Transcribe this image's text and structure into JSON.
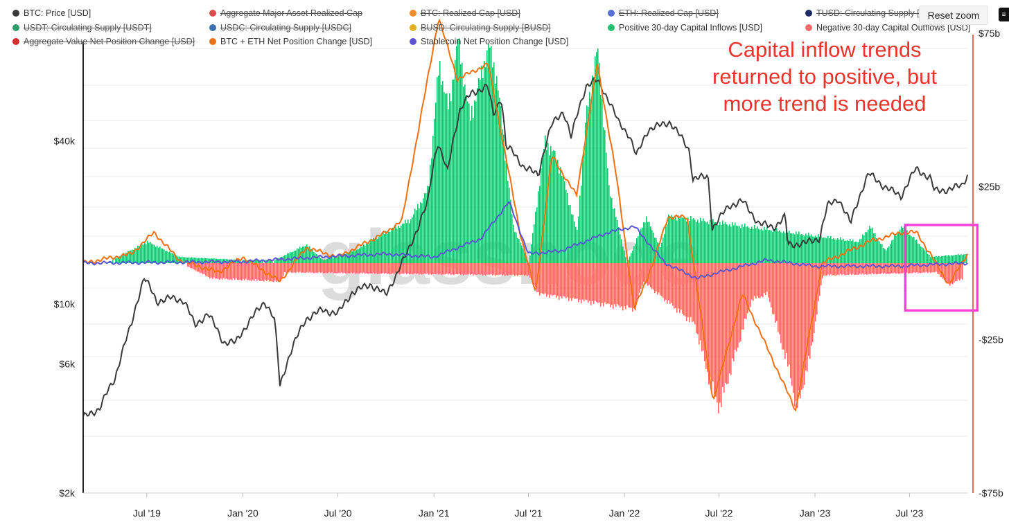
{
  "reset_zoom_label": "Reset zoom",
  "annotation": "Capital inflow trends returned to positive, but more trend is needed",
  "watermark": "glassnode",
  "legend": [
    {
      "label": "BTC: Price [USD]",
      "color": "#3a3a3a",
      "active": true
    },
    {
      "label": "Aggregate Major Asset Realized Cap",
      "color": "#e04a4a",
      "active": false
    },
    {
      "label": "BTC: Realized Cap [USD]",
      "color": "#f08b2d",
      "active": false
    },
    {
      "label": "ETH: Realized Cap [USD]",
      "color": "#5a6fd8",
      "active": false
    },
    {
      "label": "TUSD: Circulating Supply [",
      "color": "#1f2a6b",
      "active": false
    },
    {
      "label": "USDT: Circulating Supply [USDT]",
      "color": "#2a9d68",
      "active": false
    },
    {
      "label": "USDC: Circulating Supply [USDC]",
      "color": "#3a6fb0",
      "active": false
    },
    {
      "label": "BUSD: Circulating Supply [BUSD]",
      "color": "#e0b020",
      "active": false
    },
    {
      "label": "Positive 30-day Capital Inflows [USD]",
      "color": "#1fbf6f",
      "active": true
    },
    {
      "label": "Negative 30-day Capital Outflows [USD]",
      "color": "#f36a6a",
      "active": true
    },
    {
      "label": "Aggregate Value Net Position Change [USD]",
      "color": "#d62b2b",
      "active": false
    },
    {
      "label": "BTC + ETH Net Position Change [USD]",
      "color": "#f07010",
      "active": true
    },
    {
      "label": "Stablecoin Net Position Change [USD]",
      "color": "#5b55d6",
      "active": true
    }
  ],
  "colors": {
    "price": "#3a3a3a",
    "inflow": "#1fbf6f",
    "outflow": "#f36a6a",
    "btc_eth": "#f07010",
    "stable": "#5b55d6",
    "highlight": "#ff3fd8",
    "right_axis": "#e8352c"
  },
  "chart_data": {
    "type": "line",
    "x_axis": {
      "type": "date",
      "range": [
        "2019-03-01",
        "2023-10-20"
      ],
      "ticks": [
        "Jul '19",
        "Jan '20",
        "Jul '20",
        "Jan '21",
        "Jul '21",
        "Jan '22",
        "Jul '22",
        "Jan '23",
        "Jul '23"
      ]
    },
    "y_left": {
      "scale": "log",
      "range": [
        2000,
        100000
      ],
      "ticks": [
        "$2k",
        "$6k",
        "$10k",
        "$40k"
      ]
    },
    "y_right": {
      "scale": "linear",
      "range": [
        -75,
        75
      ],
      "unit": "billion USD",
      "ticks": [
        "-$75b",
        "-$25b",
        "$25b",
        "$75b"
      ]
    },
    "series": [
      {
        "name": "BTC: Price [USD]",
        "axis": "left",
        "x": [
          "2019-03-01",
          "2019-04-01",
          "2019-05-01",
          "2019-06-01",
          "2019-06-26",
          "2019-07-20",
          "2019-08-15",
          "2019-09-10",
          "2019-10-01",
          "2019-10-26",
          "2019-11-25",
          "2019-12-18",
          "2020-01-15",
          "2020-02-12",
          "2020-03-01",
          "2020-03-12",
          "2020-04-01",
          "2020-05-01",
          "2020-06-01",
          "2020-07-01",
          "2020-07-28",
          "2020-09-01",
          "2020-10-01",
          "2020-10-21",
          "2020-11-10",
          "2020-12-01",
          "2020-12-20",
          "2021-01-08",
          "2021-01-27",
          "2021-02-20",
          "2021-03-13",
          "2021-04-14",
          "2021-04-25",
          "2021-05-10",
          "2021-05-19",
          "2021-06-01",
          "2021-06-22",
          "2021-07-20",
          "2021-08-15",
          "2021-09-06",
          "2021-09-21",
          "2021-10-20",
          "2021-11-10",
          "2021-12-01",
          "2021-12-20",
          "2022-01-10",
          "2022-01-24",
          "2022-02-15",
          "2022-03-29",
          "2022-05-05",
          "2022-05-12",
          "2022-06-10",
          "2022-06-18",
          "2022-07-20",
          "2022-08-15",
          "2022-09-15",
          "2022-10-15",
          "2022-11-05",
          "2022-11-10",
          "2022-12-15",
          "2023-01-10",
          "2023-01-25",
          "2023-02-15",
          "2023-03-10",
          "2023-04-14",
          "2023-05-15",
          "2023-06-15",
          "2023-07-13",
          "2023-08-10",
          "2023-08-18",
          "2023-09-15",
          "2023-10-10",
          "2023-10-20"
        ],
        "y": [
          3800,
          4100,
          5300,
          8300,
          12500,
          10200,
          10500,
          10300,
          8300,
          9200,
          7200,
          7200,
          8700,
          10200,
          8800,
          4950,
          6600,
          8800,
          9500,
          9200,
          11000,
          11800,
          10800,
          12800,
          15300,
          19000,
          23500,
          39500,
          30500,
          52000,
          60000,
          63500,
          50000,
          58000,
          38000,
          36500,
          32000,
          30000,
          46000,
          51500,
          41000,
          64000,
          67000,
          57000,
          47000,
          42000,
          35000,
          44000,
          47000,
          37000,
          29000,
          29500,
          18900,
          23000,
          24000,
          19800,
          19200,
          21000,
          16500,
          16800,
          17500,
          23000,
          24500,
          19800,
          30300,
          27000,
          25000,
          31500,
          29200,
          26100,
          26500,
          27400,
          30000
        ]
      },
      {
        "name": "Positive 30-day Capital Inflows [USD]",
        "axis": "right",
        "values_in": "billion USD",
        "x": [
          "2019-04-15",
          "2019-07-01",
          "2019-09-01",
          "2020-01-01",
          "2020-03-01",
          "2020-05-01",
          "2020-06-01",
          "2020-08-01",
          "2020-10-01",
          "2020-11-15",
          "2020-12-20",
          "2021-01-10",
          "2021-01-28",
          "2021-02-15",
          "2021-03-10",
          "2021-04-15",
          "2021-05-01",
          "2021-05-15",
          "2021-06-01",
          "2021-07-01",
          "2021-08-01",
          "2021-08-20",
          "2021-09-01",
          "2021-10-01",
          "2021-10-20",
          "2021-11-10",
          "2021-12-01",
          "2022-01-05",
          "2022-02-10",
          "2022-03-10",
          "2022-03-25",
          "2022-04-10",
          "2023-03-25",
          "2023-04-15",
          "2023-05-15",
          "2023-06-15",
          "2023-07-15",
          "2023-08-10",
          "2023-10-20"
        ],
        "y": [
          0,
          7,
          2,
          1,
          1,
          6,
          1,
          4,
          10,
          14,
          24,
          65,
          50,
          73,
          47,
          71,
          60,
          38,
          12,
          0,
          40,
          35,
          30,
          10,
          50,
          70,
          25,
          0,
          15,
          5,
          15,
          15,
          7,
          12,
          4,
          12,
          7,
          2,
          3
        ]
      },
      {
        "name": "Negative 30-day Capital Outflows [USD]",
        "axis": "right",
        "values_in": "billion USD",
        "x": [
          "2019-09-15",
          "2019-11-01",
          "2020-03-12",
          "2020-03-20",
          "2021-07-01",
          "2021-07-20",
          "2022-01-20",
          "2022-02-05",
          "2022-05-15",
          "2022-06-15",
          "2022-07-01",
          "2022-09-01",
          "2022-10-01",
          "2022-11-15",
          "2022-11-25",
          "2022-12-20",
          "2023-01-15",
          "2023-08-20",
          "2023-09-15",
          "2023-10-10"
        ],
        "y": [
          -1,
          -5,
          -6,
          -3,
          -4,
          -10,
          -15,
          -6,
          -20,
          -40,
          -47,
          -12,
          -10,
          -37,
          -48,
          -32,
          -4,
          -3,
          -7,
          -5
        ]
      },
      {
        "name": "BTC + ETH Net Position Change [USD]",
        "axis": "right",
        "values_in": "billion USD",
        "x": [
          "2019-03-01",
          "2019-06-01",
          "2019-07-15",
          "2019-09-01",
          "2019-11-15",
          "2020-01-01",
          "2020-03-12",
          "2020-05-01",
          "2020-07-01",
          "2020-10-01",
          "2020-11-01",
          "2021-01-10",
          "2021-02-15",
          "2021-04-15",
          "2021-06-15",
          "2021-07-15",
          "2021-08-15",
          "2021-10-01",
          "2021-11-10",
          "2021-12-15",
          "2022-01-20",
          "2022-02-25",
          "2022-03-25",
          "2022-05-01",
          "2022-06-20",
          "2022-08-15",
          "2022-11-25",
          "2023-01-15",
          "2023-04-15",
          "2023-06-15",
          "2023-07-15",
          "2023-09-15",
          "2023-10-20"
        ],
        "y": [
          0,
          3,
          10,
          1,
          -3,
          2,
          -6,
          5,
          2,
          10,
          14,
          80,
          60,
          65,
          10,
          -10,
          35,
          22,
          65,
          30,
          -15,
          0,
          15,
          15,
          -45,
          -10,
          -48,
          0,
          7,
          10,
          10,
          -7,
          3
        ]
      },
      {
        "name": "Stablecoin Net Position Change [USD]",
        "axis": "right",
        "values_in": "billion USD",
        "x": [
          "2019-03-01",
          "2020-01-01",
          "2020-06-01",
          "2020-10-01",
          "2021-01-01",
          "2021-04-01",
          "2021-05-25",
          "2021-07-01",
          "2021-09-01",
          "2021-12-01",
          "2022-01-20",
          "2022-03-20",
          "2022-05-20",
          "2022-07-01",
          "2022-10-01",
          "2023-01-01",
          "2023-06-01",
          "2023-10-20"
        ],
        "y": [
          0,
          0.5,
          2,
          3,
          2,
          8,
          20,
          3,
          4,
          10,
          12,
          0,
          -5,
          -3,
          1,
          -1,
          -1,
          0
        ]
      }
    ],
    "highlight_box": {
      "x_range": [
        "2023-07-01",
        "2023-10-31"
      ],
      "y_range_b": [
        -15,
        12
      ]
    }
  }
}
